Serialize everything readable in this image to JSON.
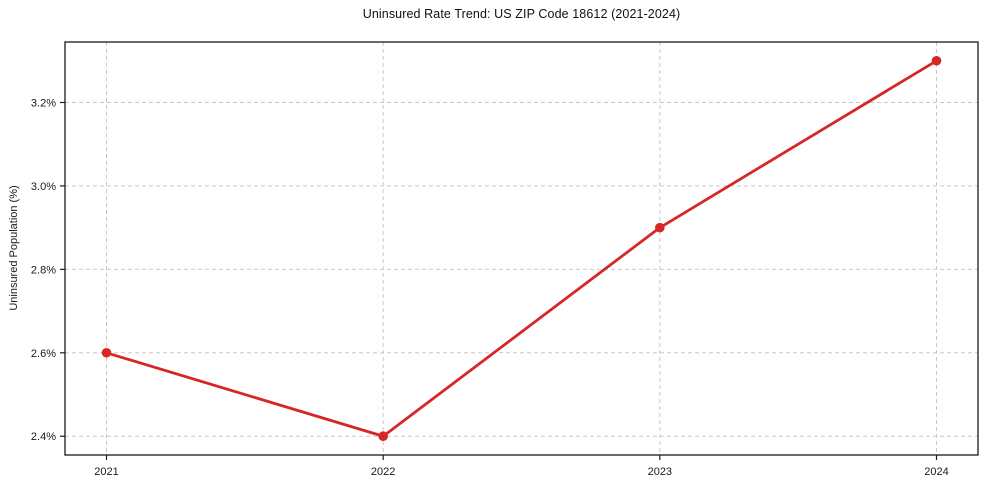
{
  "chart_data": {
    "type": "line",
    "title": "Uninsured Rate Trend: US ZIP Code 18612 (2021-2024)",
    "xlabel": "",
    "ylabel": "Uninsured Population (%)",
    "x": [
      2021,
      2022,
      2023,
      2024
    ],
    "x_tick_labels": [
      "2021",
      "2022",
      "2023",
      "2024"
    ],
    "y_ticks": [
      2.4,
      2.6,
      2.8,
      3.0,
      3.2
    ],
    "y_tick_labels": [
      "2.4%",
      "2.6%",
      "2.8%",
      "3.0%",
      "3.2%"
    ],
    "xlim": [
      2020.85,
      2024.15
    ],
    "ylim": [
      2.355,
      3.345
    ],
    "grid": true,
    "grid_style": "dashed",
    "legend": "none",
    "series": [
      {
        "name": "Uninsured Population (%)",
        "values": [
          2.6,
          2.4,
          2.9,
          3.3
        ],
        "color": "#d62728",
        "marker": "circle"
      }
    ],
    "colors": {
      "line": "#d62728",
      "grid": "#c9c9c9",
      "axis": "#1a1a1a",
      "text": "#1a1a1a",
      "background": "#ffffff"
    }
  }
}
